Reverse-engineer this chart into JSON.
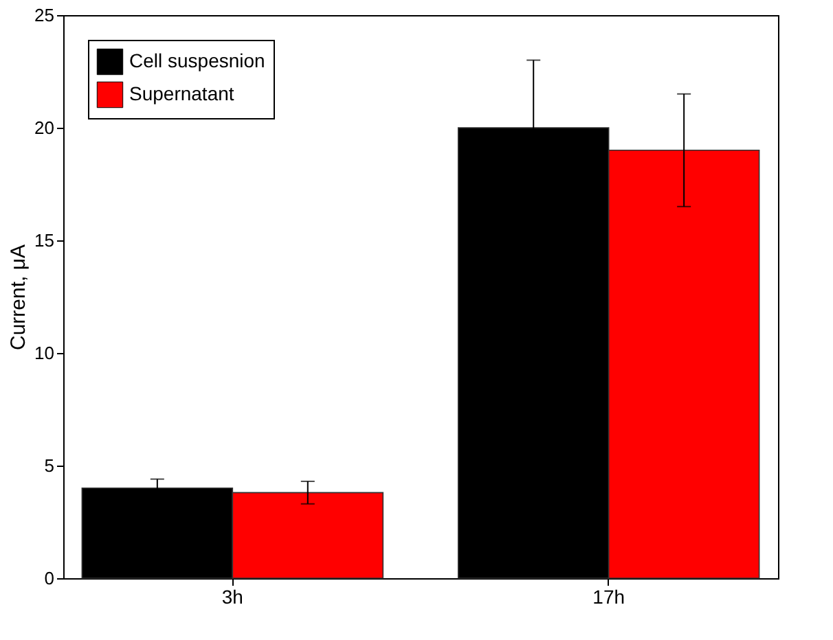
{
  "chart_data": {
    "type": "bar",
    "ylabel": "Current, μA",
    "categories": [
      "3h",
      "17h"
    ],
    "series": [
      {
        "name": "Cell suspesnion",
        "color": "#000000",
        "values": [
          4.0,
          20.0
        ],
        "errors": [
          0.4,
          3.0
        ]
      },
      {
        "name": "Supernatant",
        "color": "#ff0000",
        "values": [
          3.8,
          19.0
        ],
        "errors": [
          0.5,
          2.5
        ]
      }
    ],
    "ylim": [
      0,
      25
    ],
    "yticks": [
      0,
      5,
      10,
      15,
      20,
      25
    ],
    "grid": false,
    "legend": "top left"
  }
}
